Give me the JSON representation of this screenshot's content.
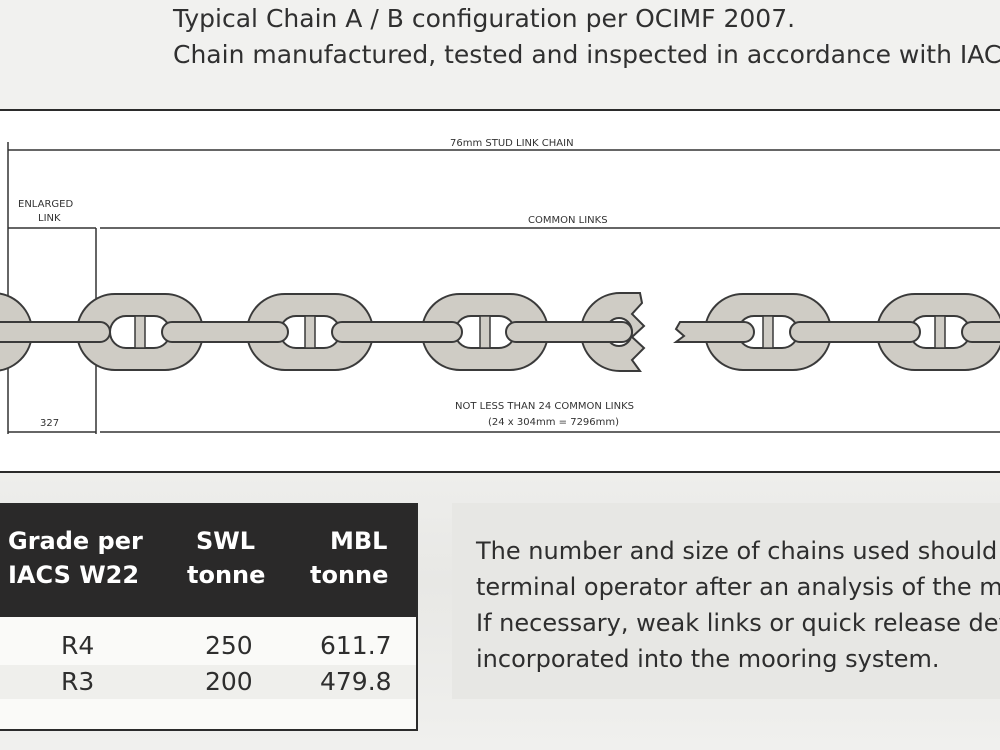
{
  "heading": {
    "line1": "Typical Chain A / B configuration per OCIMF 2007.",
    "line2": "Chain manufactured, tested and inspected in accordance with IACS W"
  },
  "diagram": {
    "top_label": "76mm STUD LINK CHAIN",
    "enlarged_label_1": "ENLARGED",
    "enlarged_label_2": "LINK",
    "common_label": "COMMON LINKS",
    "enlarged_dim": "327",
    "count_label_1": "NOT LESS THAN 24 COMMON LINKS",
    "count_label_2": "(24 x 304mm = 7296mm)"
  },
  "table": {
    "headers": [
      [
        "Grade per",
        "IACS W22"
      ],
      [
        "SWL",
        "tonne"
      ],
      [
        "MBL",
        "tonne"
      ]
    ],
    "rows": [
      [
        "R4",
        "250",
        "611.7"
      ],
      [
        "R3",
        "200",
        "479.8"
      ]
    ]
  },
  "note": {
    "lines": [
      "The number and size of chains used should",
      "terminal operator after an analysis of the m",
      "If necessary, weak links or quick release dev",
      "incorporated into the mooring system."
    ]
  }
}
